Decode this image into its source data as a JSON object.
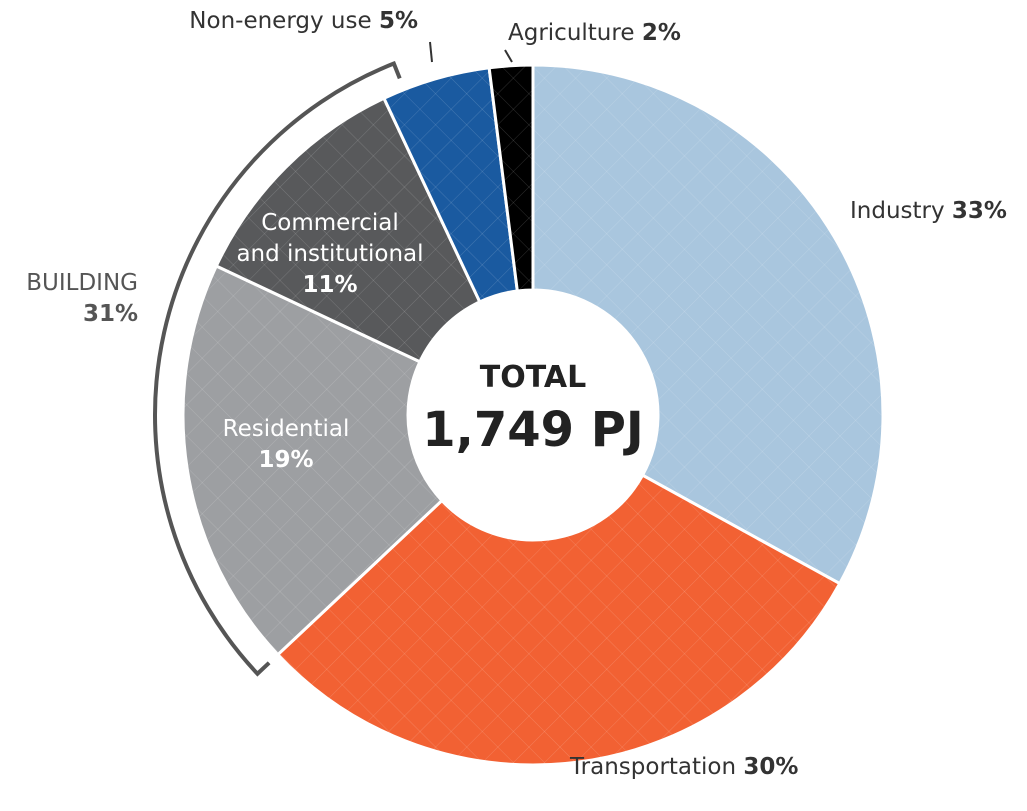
{
  "chart_data": {
    "type": "donut",
    "categories": [
      "Industry",
      "Transportation",
      "Residential",
      "Commercial\nand institutional",
      "Non-energy use",
      "Agriculture"
    ],
    "values": [
      33,
      30,
      19,
      11,
      5,
      2
    ],
    "value_labels": [
      "33%",
      "30%",
      "19%",
      "11%",
      "5%",
      "2%"
    ],
    "colors": [
      "#a9c6de",
      "#f26133",
      "#9d9fa2",
      "#58595b",
      "#1a5aa0",
      "#000000"
    ],
    "center_title": "TOTAL",
    "center_value": "1,749 PJ",
    "group": {
      "name": "BUILDING",
      "value": 31,
      "value_label": "31%"
    }
  }
}
